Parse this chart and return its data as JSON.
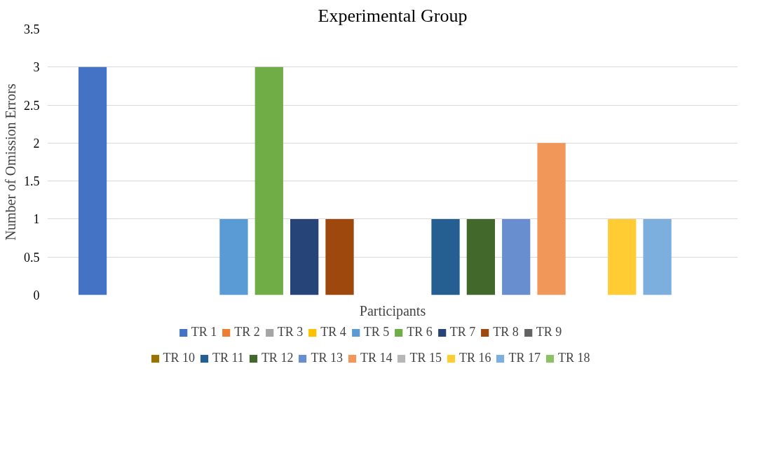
{
  "chart_data": {
    "type": "bar",
    "title": "Experimental Group",
    "xlabel": "Participants",
    "ylabel": "Number of Omission Errors",
    "categories": [
      null
    ],
    "series": [
      {
        "name": "TR 1",
        "color": "#4472c4",
        "values": [
          3
        ]
      },
      {
        "name": "TR 2",
        "color": "#ed7d31",
        "values": [
          0
        ]
      },
      {
        "name": "TR 3",
        "color": "#a5a5a5",
        "values": [
          0
        ]
      },
      {
        "name": "TR 4",
        "color": "#ffc000",
        "values": [
          0
        ]
      },
      {
        "name": "TR 5",
        "color": "#5b9bd5",
        "values": [
          1
        ]
      },
      {
        "name": "TR 6",
        "color": "#70ad47",
        "values": [
          3
        ]
      },
      {
        "name": "TR 7",
        "color": "#264478",
        "values": [
          1
        ]
      },
      {
        "name": "TR 8",
        "color": "#9e480e",
        "values": [
          1
        ]
      },
      {
        "name": "TR 9",
        "color": "#636363",
        "values": [
          0
        ]
      },
      {
        "name": "TR 10",
        "color": "#997300",
        "values": [
          0
        ]
      },
      {
        "name": "TR 11",
        "color": "#255e91",
        "values": [
          1
        ]
      },
      {
        "name": "TR 12",
        "color": "#43682b",
        "values": [
          1
        ]
      },
      {
        "name": "TR 13",
        "color": "#698ed0",
        "values": [
          1
        ]
      },
      {
        "name": "TR 14",
        "color": "#f1975a",
        "values": [
          2
        ]
      },
      {
        "name": "TR 15",
        "color": "#b7b7b7",
        "values": [
          0
        ]
      },
      {
        "name": "TR 16",
        "color": "#ffcd33",
        "values": [
          1
        ]
      },
      {
        "name": "TR 17",
        "color": "#7cafdd",
        "values": [
          1
        ]
      },
      {
        "name": "TR 18",
        "color": "#8cc168",
        "values": [
          0
        ]
      }
    ],
    "ylim": [
      0,
      3.5
    ],
    "yticks": [
      0,
      0.5,
      1,
      1.5,
      2,
      2.5,
      3,
      3.5
    ],
    "grid": "y",
    "legend": "bottom"
  }
}
